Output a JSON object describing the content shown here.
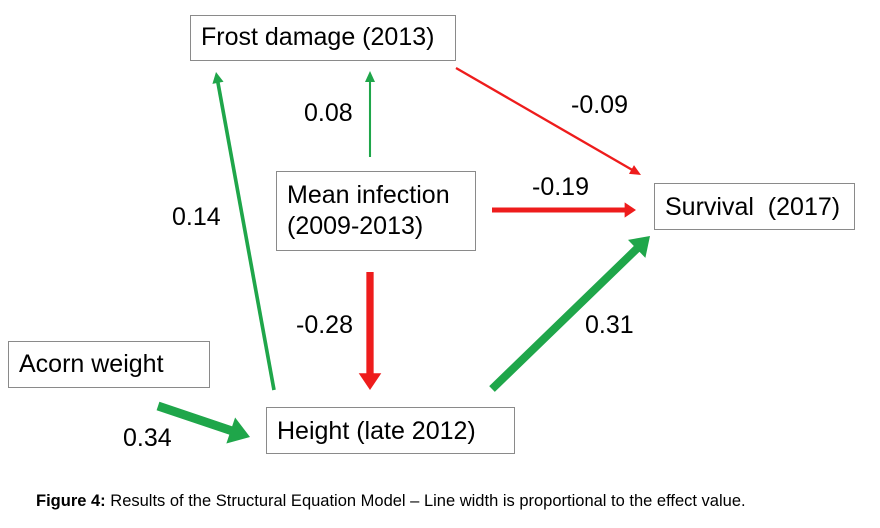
{
  "nodes": {
    "frost": "Frost damage (2013)",
    "mean_line1": "Mean infection",
    "mean_line2": "(2009-2013)",
    "survival": "Survival  (2017)",
    "acorn": "Acorn weight",
    "height": "Height (late 2012)"
  },
  "edges": {
    "mean_to_frost": "0.08",
    "frost_to_survival": "-0.09",
    "mean_to_survival": "-0.19",
    "height_to_frost": "0.14",
    "mean_to_height": "-0.28",
    "height_to_survival": "0.31",
    "acorn_to_height": "0.34"
  },
  "colors": {
    "positive": "#1fa64a",
    "negative": "#ee1c1c"
  },
  "caption": {
    "label": "Figure 4:",
    "text": " Results of the Structural Equation Model – Line width is proportional to the effect value."
  }
}
